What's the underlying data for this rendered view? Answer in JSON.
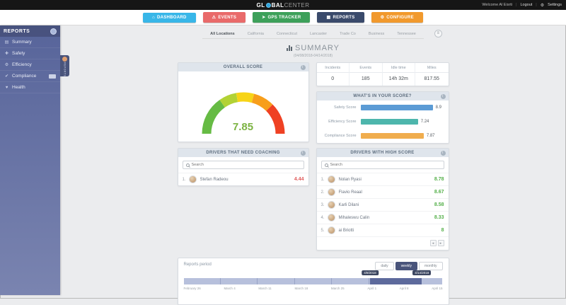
{
  "topbar": {
    "logo_pre": "GL",
    "logo_mid": "BAL",
    "logo_suffix": "CENTER",
    "welcome": "Welcome Al Eisrti",
    "logout": "Logout",
    "settings": "Settings"
  },
  "nav": {
    "items": [
      {
        "label": "DASHBOARD",
        "icon": "⌂",
        "color": "#38b6e8"
      },
      {
        "label": "EVENTS",
        "icon": "⚠",
        "color": "#e96a6a"
      },
      {
        "label": "GPS TRACKER",
        "icon": "➤",
        "color": "#3da05a"
      },
      {
        "label": "REPORTS",
        "icon": "▦",
        "color": "#3a4a6b"
      },
      {
        "label": "CONFIGURE",
        "icon": "⚙",
        "color": "#f1992d"
      }
    ]
  },
  "sidebar": {
    "title": "REPORTS",
    "flyout_label": "REPORTS",
    "items": [
      {
        "icon": "▤",
        "label": "Summary"
      },
      {
        "icon": "✚",
        "label": "Safety"
      },
      {
        "icon": "⚙",
        "label": "Efficiency"
      },
      {
        "icon": "✔",
        "label": "Compliance"
      },
      {
        "icon": "♥",
        "label": "Health"
      }
    ]
  },
  "tabs": {
    "items": [
      "All Locations",
      "California",
      "Connecticut",
      "Lancaster",
      "Trade Co",
      "Business",
      "Tennessee"
    ]
  },
  "icons": {
    "expand": "≡",
    "prev": "◄",
    "next": "►"
  },
  "summary": {
    "title": "SUMMARY",
    "period": "(04/08/2018-04/14/2018)"
  },
  "overall": {
    "title": "OVERALL SCORE",
    "score": "7.85"
  },
  "stats": {
    "columns": [
      {
        "label": "Incidents",
        "value": "0"
      },
      {
        "label": "Events",
        "value": "185"
      },
      {
        "label": "Idle time",
        "value": "14h 32m"
      },
      {
        "label": "Miles",
        "value": "817.55"
      }
    ]
  },
  "breakdown": {
    "title": "WHAT'S IN YOUR SCORE?",
    "rows": [
      {
        "label": "Safety Score",
        "value": "8.9",
        "pct": 88,
        "color": "#5b9bd5"
      },
      {
        "label": "Efficiency Score",
        "value": "7.24",
        "pct": 70,
        "color": "#4db6ac"
      },
      {
        "label": "Compliance Score",
        "value": "7.87",
        "pct": 77,
        "color": "#f0ad4e"
      }
    ]
  },
  "coaching": {
    "title": "DRIVERS THAT NEED COACHING",
    "search_placeholder": "Search",
    "rows": [
      {
        "rank": "1.",
        "name": "Stefan Radeou",
        "score": "4.44"
      }
    ]
  },
  "highscore": {
    "title": "DRIVERS WITH HIGH SCORE",
    "search_placeholder": "Search",
    "rows": [
      {
        "rank": "1.",
        "name": "Nolan Ryasi",
        "score": "8.78"
      },
      {
        "rank": "2.",
        "name": "Flavio Reaal",
        "score": "8.67"
      },
      {
        "rank": "3.",
        "name": "Karli Dilani",
        "score": "8.58"
      },
      {
        "rank": "4.",
        "name": "Mihaleswu Calin",
        "score": "8.33"
      },
      {
        "rank": "5.",
        "name": "ai Briotti",
        "score": "8"
      }
    ]
  },
  "period": {
    "title": "Reports period",
    "buttons": [
      "daily",
      "weekly",
      "monthly"
    ],
    "active": "weekly",
    "tooltips": [
      "4/8/2018",
      "4/14/2018"
    ],
    "ticks": [
      "February 26",
      "March 4",
      "March 11",
      "March 18",
      "March 25",
      "April 1",
      "April 8",
      "April 15"
    ]
  },
  "colors": {
    "positive": "#55b04a",
    "negative": "#e05c5c",
    "gauge_score": "#7cb342"
  }
}
